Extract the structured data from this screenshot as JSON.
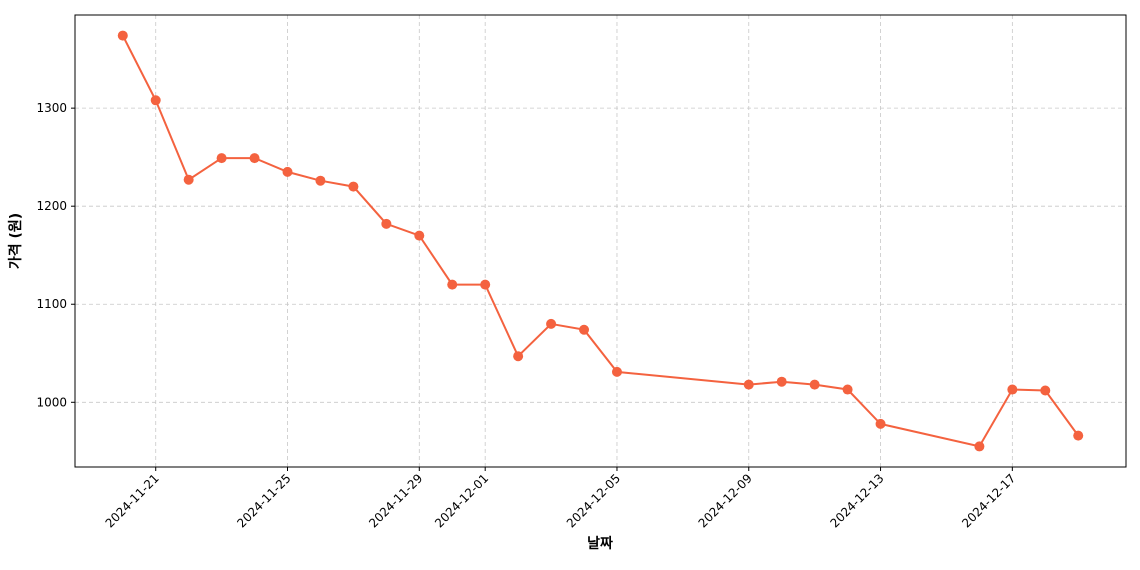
{
  "chart_data": {
    "type": "line",
    "x_label": "날짜",
    "y_label": "가격 (원)",
    "x": [
      "2024-11-20",
      "2024-11-21",
      "2024-11-22",
      "2024-11-23",
      "2024-11-24",
      "2024-11-25",
      "2024-11-26",
      "2024-11-27",
      "2024-11-28",
      "2024-11-29",
      "2024-11-30",
      "2024-12-01",
      "2024-12-02",
      "2024-12-03",
      "2024-12-04",
      "2024-12-05",
      "2024-12-09",
      "2024-12-10",
      "2024-12-11",
      "2024-12-12",
      "2024-12-13",
      "2024-12-16",
      "2024-12-17",
      "2024-12-18",
      "2024-12-19"
    ],
    "series": [
      {
        "color": "#f4623f",
        "values": [
          1374,
          1308,
          1227,
          1249,
          1249,
          1235,
          1226,
          1220,
          1182,
          1170,
          1120,
          1120,
          1047,
          1080,
          1074,
          1031,
          1018,
          1021,
          1018,
          1013,
          978,
          955,
          1013,
          1012,
          966
        ]
      }
    ],
    "ylim": [
      934,
      1395
    ],
    "yticks": [
      1000,
      1100,
      1200,
      1300
    ],
    "xticks": [
      "2024-11-21",
      "2024-11-25",
      "2024-11-29",
      "2024-12-01",
      "2024-12-05",
      "2024-12-09",
      "2024-12-13",
      "2024-12-17"
    ],
    "grid": true
  }
}
